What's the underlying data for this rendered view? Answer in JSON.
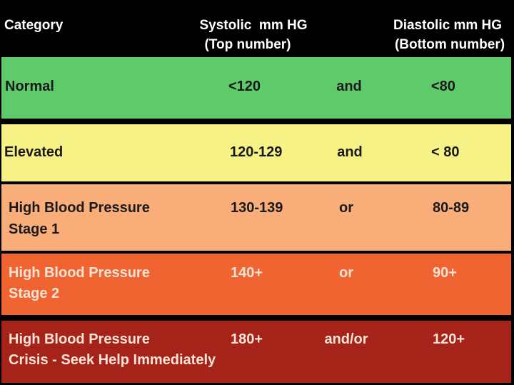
{
  "header": {
    "category": "Category",
    "systolic": [
      "Systolic  mm HG",
      "(Top number)"
    ],
    "diastolic": [
      "Diastolic mm HG",
      "(Bottom number)"
    ]
  },
  "rows": [
    {
      "category": [
        "Normal"
      ],
      "systolic": "<120",
      "connector": "and",
      "diastolic": "<80"
    },
    {
      "category": [
        "Elevated"
      ],
      "systolic": "120-129",
      "connector": "and",
      "diastolic": "< 80"
    },
    {
      "category": [
        "High Blood Pressure",
        "Stage 1"
      ],
      "systolic": "130-139",
      "connector": "or",
      "diastolic": "80-89"
    },
    {
      "category": [
        "High Blood Pressure",
        "Stage 2"
      ],
      "systolic": "140+",
      "connector": "or",
      "diastolic": "90+"
    },
    {
      "category": [
        "High Blood Pressure",
        "Crisis - Seek Help Immediately"
      ],
      "systolic": "180+",
      "connector": "and/or",
      "diastolic": "120+"
    }
  ]
}
